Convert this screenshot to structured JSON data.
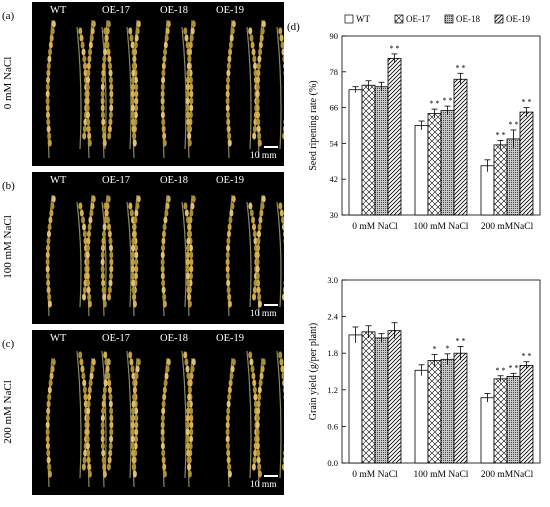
{
  "figure": {
    "panels": [
      {
        "letter": "(a)",
        "condition": "0 mM NaCl"
      },
      {
        "letter": "(b)",
        "condition": "100 mM NaCl"
      },
      {
        "letter": "(c)",
        "condition": "200 mM NaCl"
      }
    ],
    "lines": [
      "WT",
      "OE-17",
      "OE-18",
      "OE-19"
    ],
    "scale_text": "10 mm"
  },
  "chart_data": [
    {
      "panel": "(d)",
      "type": "bar",
      "categories": [
        "0 mM NaCl",
        "100 mM NaCl",
        "200 mMNaCl"
      ],
      "legend": [
        "WT",
        "OE-17",
        "OE-18",
        "OE-19"
      ],
      "legend_position": "top",
      "ylabel": "Seed ripening rate (%)",
      "ylim": [
        30,
        90
      ],
      "yticks": [
        30,
        42,
        54,
        66,
        78,
        90
      ],
      "series": [
        {
          "name": "WT",
          "values": [
            72,
            60,
            46.5
          ],
          "errors": [
            1,
            1.5,
            2
          ],
          "sig": [
            "",
            "",
            ""
          ]
        },
        {
          "name": "OE-17",
          "values": [
            73.5,
            64,
            53.5
          ],
          "errors": [
            1.5,
            1.5,
            1.5
          ],
          "sig": [
            "",
            "* *",
            "* *"
          ]
        },
        {
          "name": "OE-18",
          "values": [
            73,
            65,
            55.5
          ],
          "errors": [
            1.5,
            1.5,
            3
          ],
          "sig": [
            "",
            "* *",
            "* *"
          ]
        },
        {
          "name": "OE-19",
          "values": [
            82.5,
            75.5,
            64.5
          ],
          "errors": [
            1.5,
            2,
            1.5
          ],
          "sig": [
            "* *",
            "* *",
            "* *"
          ]
        }
      ]
    },
    {
      "panel": "(e)",
      "type": "bar",
      "categories": [
        "0 mM NaCl",
        "100 mM NaCl",
        "200 mMNaCl"
      ],
      "ylabel": "Grain yield (g/per plant)",
      "ylim": [
        0,
        3
      ],
      "yticks": [
        "0.0",
        "0.6",
        "1.2",
        "1.8",
        "2.4",
        "3.0"
      ],
      "series": [
        {
          "name": "WT",
          "values": [
            2.1,
            1.52,
            1.07
          ],
          "errors": [
            0.13,
            0.09,
            0.07
          ],
          "sig": [
            "",
            "",
            ""
          ]
        },
        {
          "name": "OE-17",
          "values": [
            2.15,
            1.68,
            1.38
          ],
          "errors": [
            0.1,
            0.1,
            0.05
          ],
          "sig": [
            "",
            "*",
            "* *"
          ]
        },
        {
          "name": "OE-18",
          "values": [
            2.05,
            1.7,
            1.42
          ],
          "errors": [
            0.07,
            0.09,
            0.05
          ],
          "sig": [
            "",
            "*",
            "* *"
          ]
        },
        {
          "name": "OE-19",
          "values": [
            2.17,
            1.8,
            1.6
          ],
          "errors": [
            0.13,
            0.11,
            0.06
          ],
          "sig": [
            "",
            "* *",
            "* *"
          ]
        }
      ]
    }
  ]
}
